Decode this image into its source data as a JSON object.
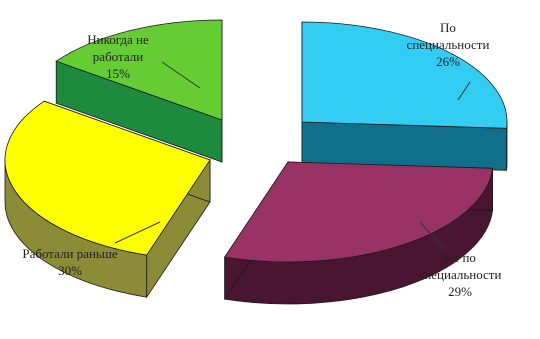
{
  "chart_data": {
    "type": "pie",
    "style": "3d-exploded",
    "grid": false,
    "legend": "none",
    "slices": [
      {
        "label_lines": [
          "По",
          "специальности"
        ],
        "value_label": "26%",
        "value": 26,
        "top_color": "#33ccf2",
        "side_color": "#106f8a"
      },
      {
        "label_lines": [
          "Не по",
          "специальности"
        ],
        "value_label": "29%",
        "value": 29,
        "top_color": "#993366",
        "side_color": "#4a1530"
      },
      {
        "label_lines": [
          "Работали раньше"
        ],
        "value_label": "30%",
        "value": 30,
        "top_color": "#ffff00",
        "side_color": "#8c8c38"
      },
      {
        "label_lines": [
          "Никогда не",
          "работали"
        ],
        "value_label": "15%",
        "value": 15,
        "top_color": "#66cc33",
        "side_color": "#1d8a3e"
      }
    ]
  }
}
